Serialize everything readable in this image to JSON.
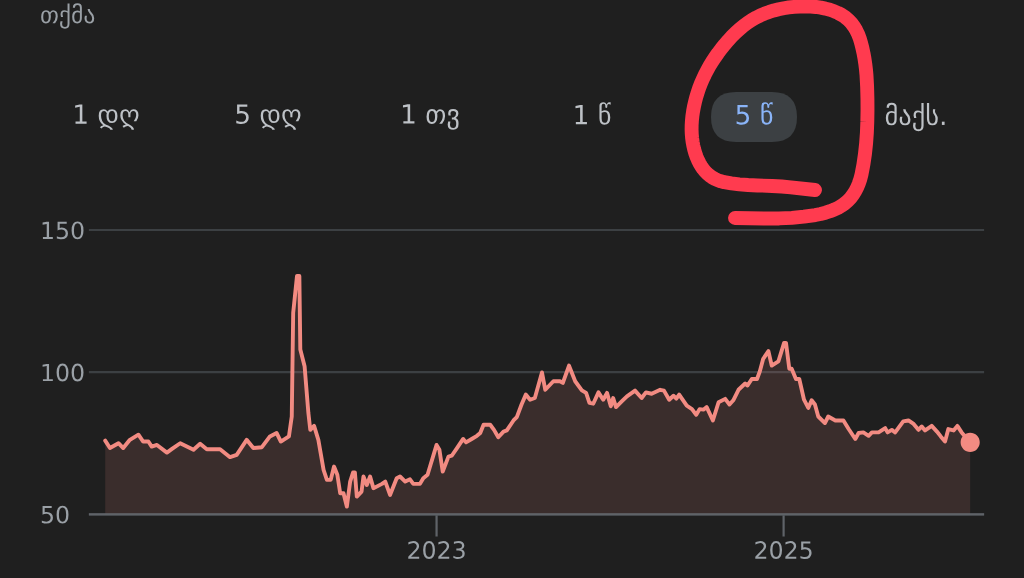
{
  "chart_data": {
    "type": "area",
    "title": "თქმა",
    "annotations": [
      "1 დღ",
      "5 დღ",
      "1 თვ",
      "1 წ",
      "5 წ",
      "მაქს."
    ],
    "x": [
      "2021-02-02",
      "2021-02-12",
      "2021-03-02",
      "2021-03-12",
      "2021-03-26",
      "2021-04-13",
      "2021-04-23",
      "2021-05-04",
      "2021-05-11",
      "2021-05-22",
      "2021-06-12",
      "2021-06-22",
      "2021-07-10",
      "2021-08-07",
      "2021-08-21",
      "2021-09-04",
      "2021-10-02",
      "2021-10-23",
      "2021-11-06",
      "2021-11-27",
      "2021-12-11",
      "2021-12-29",
      "2022-01-15",
      "2022-01-29",
      "2022-02-07",
      "2022-02-24",
      "2022-03-02",
      "2022-03-05",
      "2022-03-13",
      "2022-03-18",
      "2022-03-20",
      "2022-03-29",
      "2022-04-06",
      "2022-04-10",
      "2022-04-18",
      "2022-04-27",
      "2022-05-08",
      "2022-05-15",
      "2022-05-23",
      "2022-05-30",
      "2022-06-06",
      "2022-06-12",
      "2022-06-19",
      "2022-06-26",
      "2022-07-03",
      "2022-07-09",
      "2022-07-13",
      "2022-07-17",
      "2022-07-27",
      "2022-07-31",
      "2022-08-07",
      "2022-08-14",
      "2022-08-21",
      "2022-09-08",
      "2022-09-15",
      "2022-09-25",
      "2022-10-09",
      "2022-10-16",
      "2022-10-27",
      "2022-11-06",
      "2022-11-13",
      "2022-11-27",
      "2022-12-04",
      "2022-12-13",
      "2023-01-01",
      "2023-01-07",
      "2023-01-14",
      "2023-01-26",
      "2023-02-02",
      "2023-02-13",
      "2023-02-26",
      "2023-03-04",
      "2023-03-16",
      "2023-03-27",
      "2023-04-03",
      "2023-04-10",
      "2023-04-24",
      "2023-05-02",
      "2023-05-11",
      "2023-05-22",
      "2023-05-29",
      "2023-06-12",
      "2023-06-19",
      "2023-06-29",
      "2023-07-08",
      "2023-07-17",
      "2023-07-27",
      "2023-08-11",
      "2023-08-18",
      "2023-09-04",
      "2023-09-18",
      "2023-09-24",
      "2023-10-07",
      "2023-10-20",
      "2023-11-03",
      "2023-11-12",
      "2023-11-19",
      "2023-11-27",
      "2023-12-08",
      "2023-12-18",
      "2023-12-26",
      "2024-01-03",
      "2024-01-08",
      "2024-01-14",
      "2024-01-26",
      "2024-02-06",
      "2024-02-23",
      "2024-03-08",
      "2024-03-17",
      "2024-03-29",
      "2024-04-16",
      "2024-04-24",
      "2024-05-05",
      "2024-05-14",
      "2024-05-20",
      "2024-05-26",
      "2024-06-11",
      "2024-06-22",
      "2024-07-01",
      "2024-07-08",
      "2024-07-16",
      "2024-07-23",
      "2024-08-05",
      "2024-08-17",
      "2024-08-31",
      "2024-09-09",
      "2024-09-17",
      "2024-09-28",
      "2024-10-12",
      "2024-10-17",
      "2024-10-26",
      "2024-11-06",
      "2024-11-12",
      "2024-11-19",
      "2024-11-30",
      "2024-12-07",
      "2024-12-21",
      "2025-01-02",
      "2025-01-06",
      "2025-01-13",
      "2025-01-18",
      "2025-01-27",
      "2025-02-03",
      "2025-02-13",
      "2025-02-22",
      "2025-03-01",
      "2025-03-08",
      "2025-03-15",
      "2025-03-29",
      "2025-04-05",
      "2025-04-20",
      "2025-05-07",
      "2025-05-18",
      "2025-06-01",
      "2025-06-08",
      "2025-06-18",
      "2025-06-29",
      "2025-07-06",
      "2025-07-20",
      "2025-08-03",
      "2025-08-08",
      "2025-08-17",
      "2025-08-24",
      "2025-09-10",
      "2025-09-21",
      "2025-10-01",
      "2025-10-12",
      "2025-10-19",
      "2025-10-26",
      "2025-11-09",
      "2025-11-20",
      "2025-11-28",
      "2025-12-07",
      "2025-12-14",
      "2025-12-25",
      "2026-01-02",
      "2026-01-11",
      "2026-01-29"
    ],
    "series": [
      {
        "color": "#f28b82",
        "values": [
          75.9,
          73.3,
          75.0,
          73.3,
          76.2,
          78.0,
          75.6,
          75.6,
          73.8,
          74.4,
          71.7,
          72.9,
          75.0,
          72.7,
          74.8,
          72.9,
          72.9,
          70.1,
          70.9,
          76.2,
          73.3,
          73.6,
          77.4,
          78.6,
          75.6,
          77.4,
          84.4,
          120.9,
          133.8,
          133.8,
          108.0,
          102.1,
          85.6,
          79.7,
          81.1,
          76.2,
          65.6,
          62.1,
          62.1,
          66.8,
          63.9,
          57.4,
          57.4,
          52.7,
          61.5,
          64.7,
          64.7,
          56.2,
          58.0,
          63.3,
          60.3,
          63.3,
          59.2,
          60.7,
          61.5,
          56.8,
          62.7,
          63.3,
          61.5,
          62.3,
          60.7,
          60.7,
          62.7,
          63.9,
          74.4,
          72.7,
          65.0,
          70.3,
          70.6,
          73.3,
          76.5,
          75.3,
          76.5,
          77.6,
          78.6,
          81.5,
          81.5,
          79.7,
          77.1,
          79.1,
          79.5,
          83.0,
          84.2,
          88.6,
          92.1,
          90.3,
          90.9,
          99.9,
          93.8,
          96.8,
          96.8,
          96.2,
          102.3,
          96.8,
          93.6,
          92.7,
          89.2,
          88.9,
          92.9,
          90.3,
          92.7,
          88.0,
          90.9,
          87.7,
          89.7,
          91.5,
          93.5,
          90.9,
          92.9,
          92.4,
          93.8,
          93.5,
          90.3,
          91.7,
          90.7,
          92.1,
          88.2,
          87.0,
          85.0,
          87.0,
          86.8,
          87.7,
          83.0,
          89.4,
          90.6,
          88.6,
          90.1,
          93.8,
          96.0,
          95.3,
          97.6,
          97.6,
          100.3,
          104.7,
          107.4,
          102.3,
          103.8,
          110.3,
          110.3,
          101.2,
          101.2,
          97.6,
          97.6,
          90.3,
          87.4,
          90.1,
          88.6,
          84.4,
          82.1,
          84.4,
          83.0,
          83.0,
          80.0,
          76.5,
          78.6,
          78.8,
          77.6,
          78.8,
          78.8,
          80.3,
          78.8,
          79.7,
          78.8,
          82.7,
          83.0,
          81.9,
          79.7,
          80.9,
          79.5,
          81.1,
          79.1,
          77.4,
          75.6,
          80.0,
          79.5,
          81.1,
          78.8,
          75.3
        ]
      },
      {
        "type": "scatter",
        "color": "#f28b82",
        "x": [
          "2026-01-29"
        ],
        "values": [
          75.3
        ]
      }
    ],
    "xlim": [
      "2021-01-01",
      "2026-02-25"
    ],
    "xticks": [
      {
        "value": "2023-01-01",
        "label": "2023"
      },
      {
        "value": "2025-01-01",
        "label": "2025"
      }
    ],
    "ylim": [
      50,
      150
    ],
    "yticks": [
      50,
      100,
      150
    ],
    "grid": "y"
  }
}
